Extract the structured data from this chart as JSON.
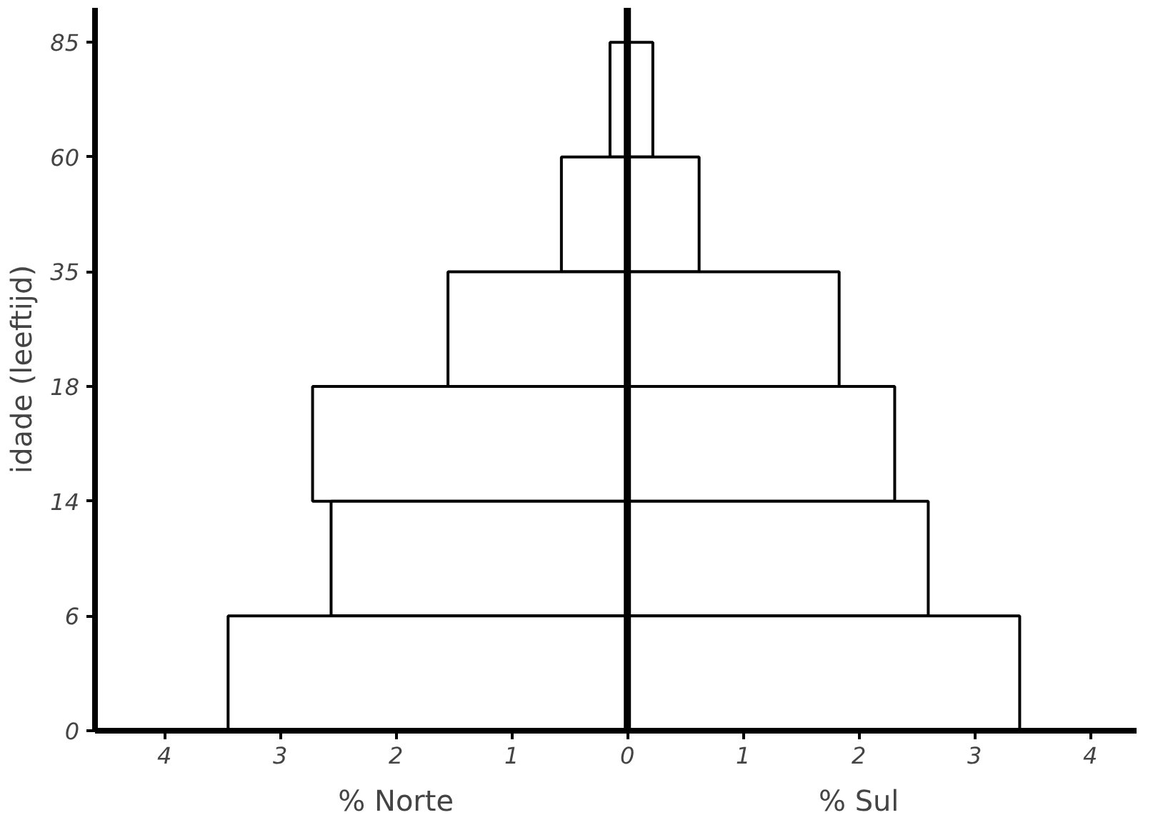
{
  "chart_data": {
    "type": "bar",
    "orientation": "horizontal",
    "stacked": true,
    "ylabel": "idade (leeftijd)",
    "categories": [
      null,
      null,
      null,
      null,
      null,
      null
    ],
    "series": [
      {
        "name": "% Norte",
        "color": "#ffffff",
        "values": [
          -0.15,
          -0.57,
          -1.55,
          -2.72,
          -2.56,
          -3.45
        ]
      },
      {
        "name": "% Sul",
        "color": "#ffffff",
        "values": [
          0.22,
          0.62,
          1.83,
          2.31,
          2.6,
          3.39
        ]
      }
    ],
    "xlim": [
      -4.6,
      4.4
    ],
    "xticks": [
      {
        "value": -4,
        "label": "4"
      },
      {
        "value": -3,
        "label": "3"
      },
      {
        "value": -2,
        "label": "2"
      },
      {
        "value": -1,
        "label": "1"
      },
      0,
      1,
      2,
      3,
      4
    ],
    "annotations": [
      "0",
      "6",
      "14",
      "18",
      "35",
      "60",
      "85"
    ],
    "ref_lines": [
      {
        "axis": "x",
        "value": 0,
        "color": "#000000"
      }
    ],
    "grid": false,
    "legend": false
  }
}
